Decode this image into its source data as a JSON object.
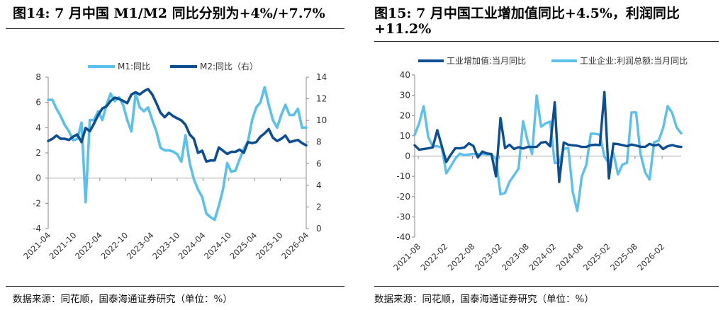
{
  "charts": [
    {
      "title": "图14:  7 月中国 M1/M2 同比分别为+4%/+7.7%",
      "source": "数据来源：同花顺，国泰海通证券研究（单位：%）"
    },
    {
      "title": "图15:  7 月中国工业增加值同比+4.5%，利润同比+11.2%",
      "source": "数据来源：同花顺，国泰海通证券研究（单位：%）"
    }
  ],
  "chart_data": [
    {
      "type": "line",
      "x_ticks": [
        "2021-04",
        "2021-10",
        "2022-04",
        "2022-10",
        "2023-04",
        "2023-10",
        "2024-04",
        "2024-10",
        "2025-04",
        "2025-10",
        "2026-04"
      ],
      "y_left": {
        "range": [
          -4,
          8
        ],
        "ticks": [
          -4,
          -2,
          0,
          2,
          4,
          6,
          8
        ]
      },
      "y_right": {
        "range": [
          0,
          14
        ],
        "ticks": [
          0,
          2,
          4,
          6,
          8,
          10,
          12,
          14
        ]
      },
      "legend_position": "top",
      "grid": false,
      "series": [
        {
          "name": "M1:同比",
          "axis": "left",
          "color": "#5BC0EB",
          "values": [
            6.2,
            6.2,
            5.5,
            4.9,
            4.2,
            3.7,
            3.0,
            3.1,
            4.4,
            -1.9,
            4.6,
            4.6,
            5.3,
            4.6,
            5.8,
            6.7,
            6.1,
            6.4,
            5.8,
            4.6,
            3.7,
            6.7,
            5.6,
            5.3,
            5.6,
            4.6,
            3.7,
            2.4,
            2.2,
            2.2,
            2.1,
            1.9,
            1.3,
            3.4,
            1.2,
            -0.1,
            -0.9,
            -1.5,
            -2.8,
            -3.1,
            -3.3,
            -2.2,
            -0.9,
            1.2,
            0.5,
            0.6,
            1.5,
            2.3,
            2.9,
            4.6,
            5.6,
            6.0,
            7.2,
            5.8,
            4.6,
            4.0,
            5.0,
            5.8,
            5.0,
            5.0,
            5.5,
            4.0,
            4.0
          ]
        },
        {
          "name": "M2:同比（右）",
          "axis": "right",
          "color": "#0D4E92",
          "values": [
            8.1,
            8.3,
            8.6,
            8.3,
            8.3,
            8.2,
            8.5,
            8.7,
            8.0,
            9.3,
            9.0,
            9.7,
            10.5,
            11.1,
            11.3,
            11.8,
            12.1,
            12.0,
            11.8,
            11.6,
            12.4,
            12.6,
            12.4,
            12.7,
            12.9,
            12.4,
            11.6,
            10.7,
            10.3,
            10.7,
            10.4,
            10.2,
            10.0,
            9.6,
            8.7,
            8.3,
            7.0,
            7.2,
            6.2,
            6.3,
            6.3,
            7.5,
            7.2,
            6.9,
            7.1,
            7.1,
            7.3,
            7.0,
            8.0,
            7.9,
            8.0,
            8.5,
            8.8,
            9.2,
            8.4,
            8.1,
            8.3,
            8.6,
            8.0,
            8.1,
            8.2,
            7.9,
            7.7
          ]
        }
      ]
    },
    {
      "type": "line",
      "x_ticks": [
        "2021-08",
        "2022-02",
        "2022-08",
        "2023-02",
        "2023-08",
        "2024-02",
        "2024-08",
        "2025-02",
        "2025-08",
        "2026-02"
      ],
      "y": {
        "range": [
          -40,
          40
        ],
        "ticks": [
          -40,
          -30,
          -20,
          -10,
          0,
          10,
          20,
          30,
          40
        ]
      },
      "legend_position": "top",
      "grid": false,
      "series": [
        {
          "name": "工业增加值:当月同比",
          "color": "#0D4E92",
          "values": [
            5.3,
            3.1,
            3.5,
            3.8,
            4.3,
            12.8,
            5.0,
            -2.9,
            0.7,
            3.9,
            3.8,
            4.2,
            6.3,
            5.0,
            -0.7,
            2.2,
            1.3,
            1.0,
            -10.0,
            18.8,
            3.9,
            5.6,
            3.5,
            4.4,
            3.7,
            4.5,
            4.5,
            4.5,
            6.6,
            7.0,
            4.8,
            26.5,
            -12.8,
            6.7,
            5.6,
            5.3,
            5.1,
            4.5,
            4.5,
            5.4,
            5.6,
            5.4,
            31.6,
            -11.0,
            6.1,
            5.9,
            5.4,
            4.9,
            5.7,
            5.2,
            4.6,
            4.5,
            6.0,
            5.2,
            5.7,
            3.5,
            4.9,
            5.4,
            4.8,
            4.5
          ]
        },
        {
          "name": "工业企业:利润总额:当月同比",
          "color": "#5BC0EB",
          "values": [
            10.5,
            16.2,
            24.6,
            9.4,
            4.8,
            4.9,
            4.2,
            -8.5,
            -5.0,
            -1.2,
            1.2,
            0.5,
            0.8,
            1.1,
            1.0,
            1.0,
            0.8,
            0.8,
            -1.5,
            -18.9,
            -18.2,
            -12.7,
            -9.5,
            -6.2,
            17.2,
            7.5,
            1.0,
            29.9,
            14.5,
            16.1,
            17.0,
            -3.5,
            -3.2,
            3.5,
            4.1,
            -17.8,
            -27.1,
            -10.0,
            -4.3,
            11.0,
            11.0,
            10.5,
            -0.3,
            -3.5,
            1.5,
            -9.1,
            -4.2,
            -3.4,
            21.5,
            21.6,
            1.0,
            -7.9,
            -11.6,
            6.8,
            7.6,
            13.8,
            24.7,
            21.3,
            14.1,
            11.2
          ]
        }
      ]
    }
  ]
}
